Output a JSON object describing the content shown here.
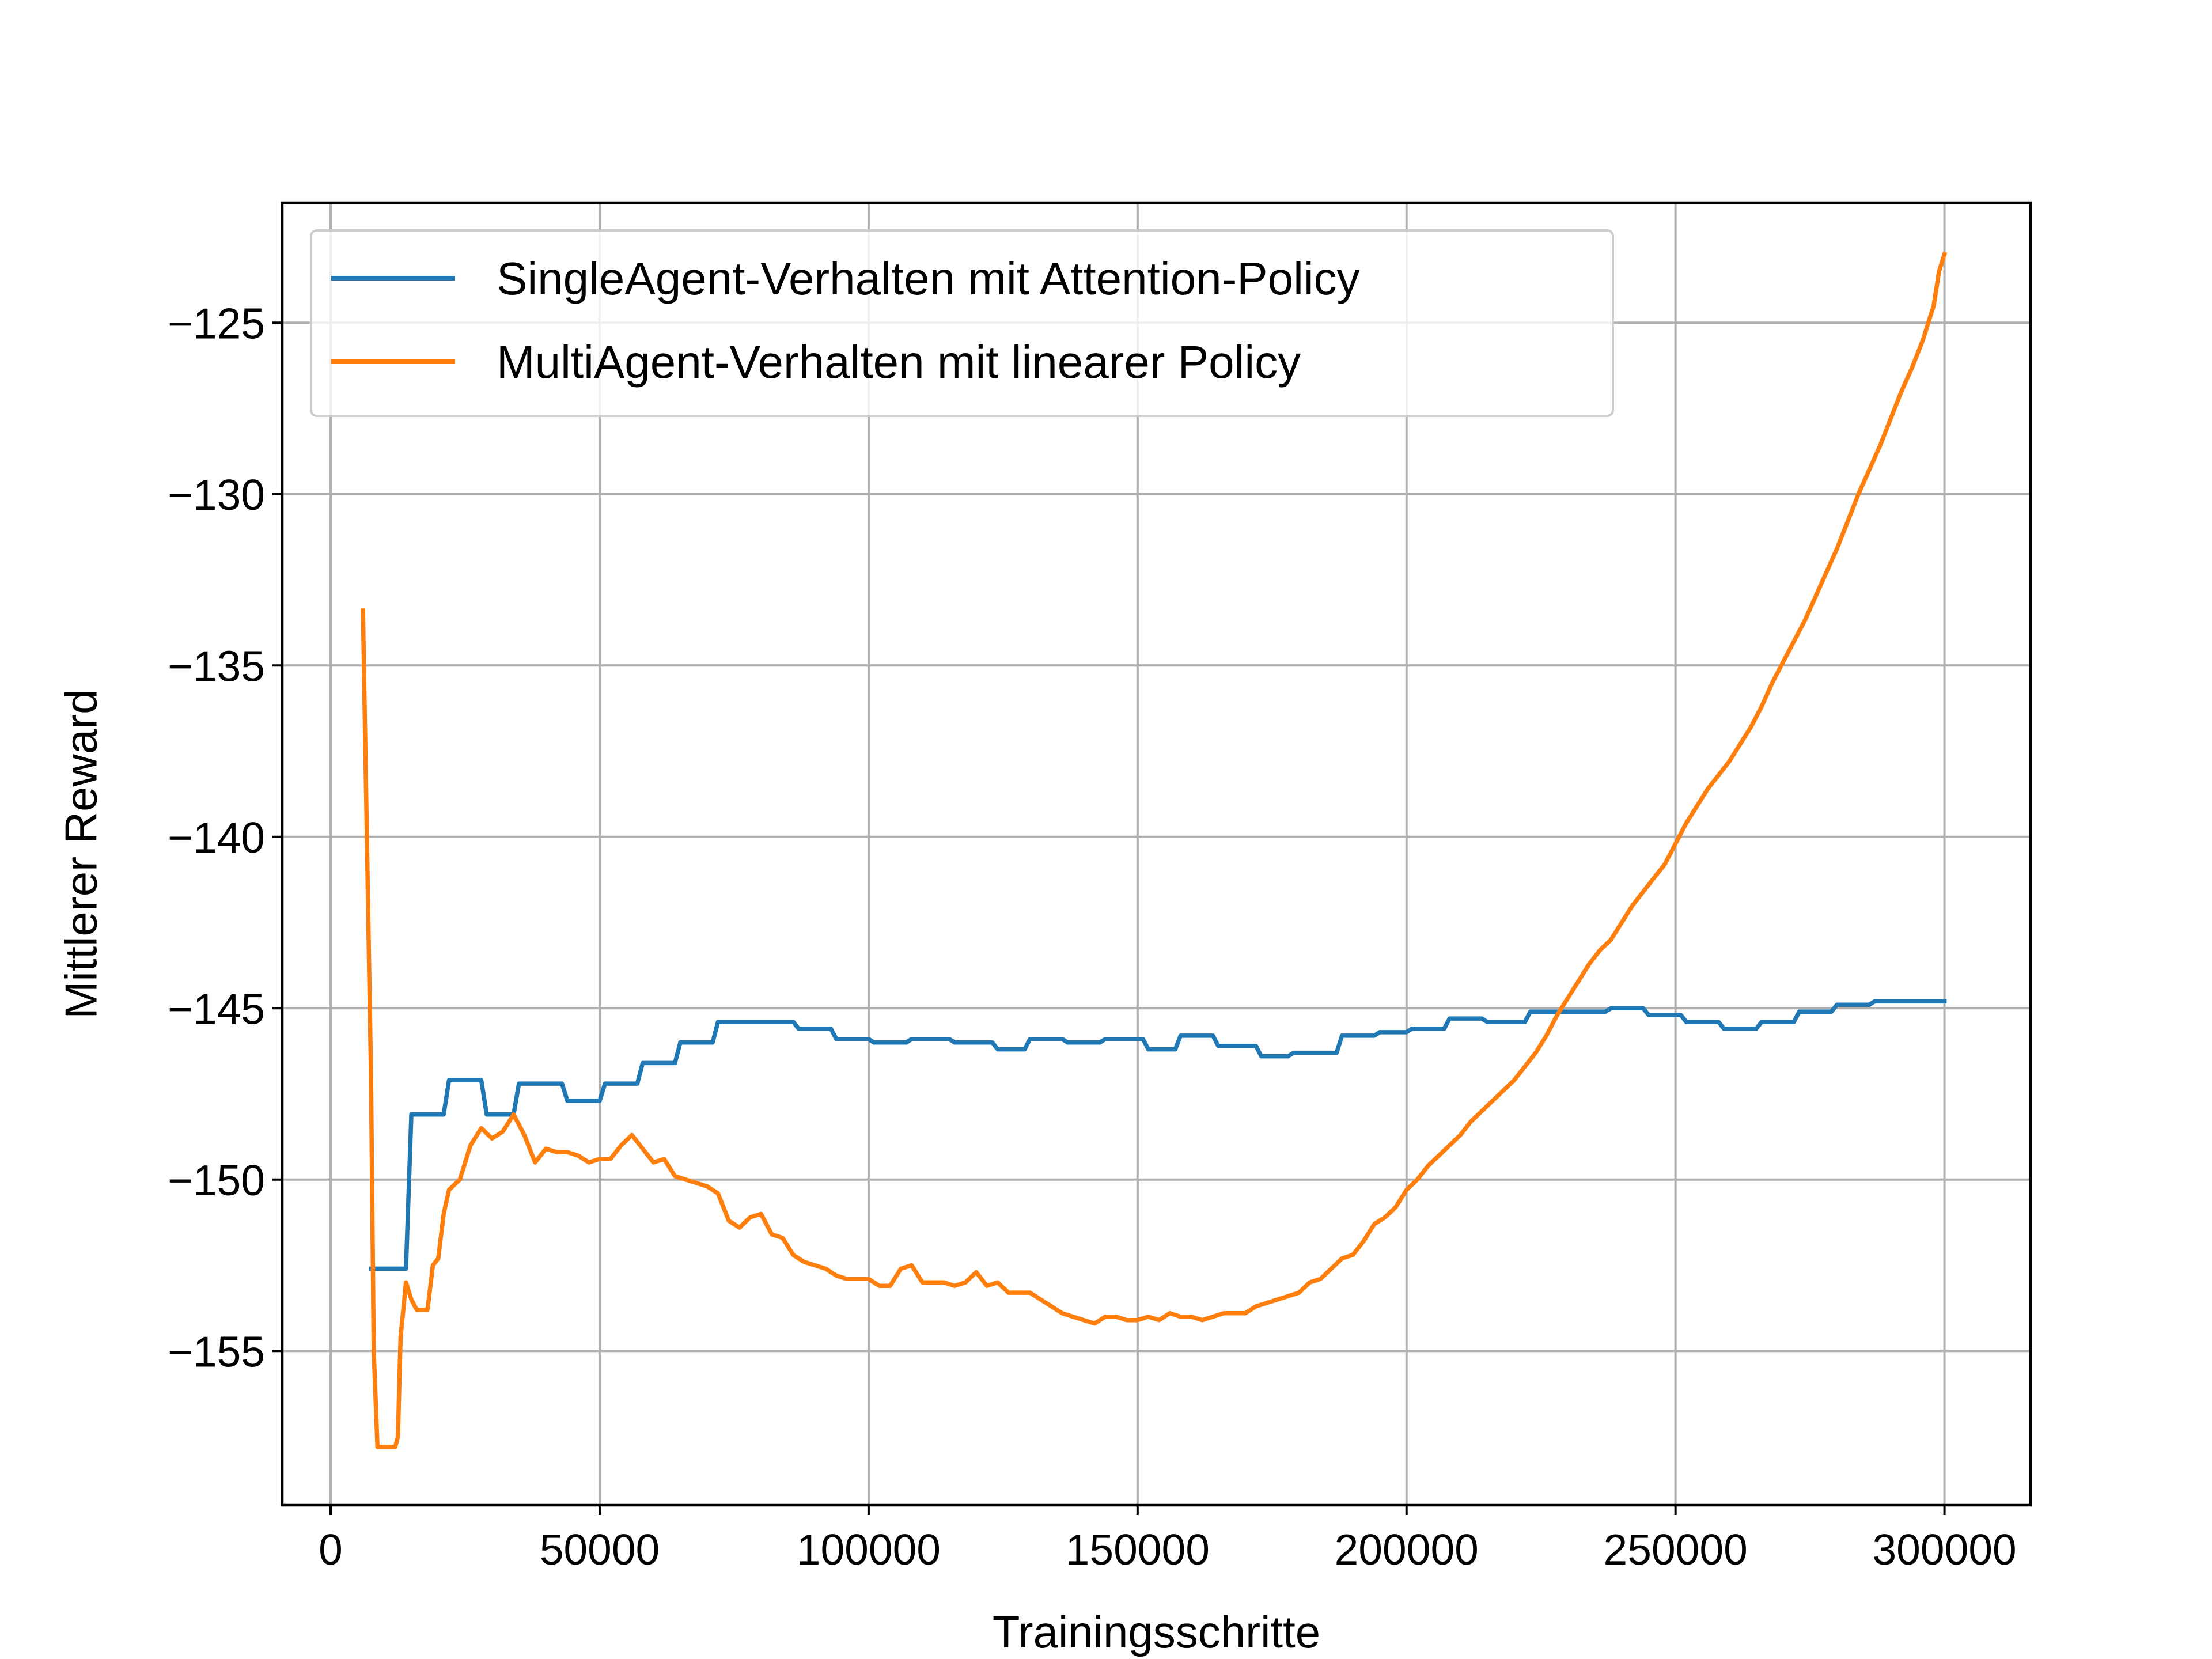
{
  "chart_data": {
    "type": "line",
    "title": "",
    "xlabel": "Trainingsschritte",
    "ylabel": "Mittlerer Reward",
    "xlim": [
      -9000,
      316000
    ],
    "ylim": [
      -159.5,
      -121.5
    ],
    "xticks": [
      0,
      50000,
      100000,
      150000,
      200000,
      250000,
      300000
    ],
    "xtick_labels": [
      "0",
      "50000",
      "100000",
      "150000",
      "200000",
      "250000",
      "300000"
    ],
    "yticks": [
      -155,
      -150,
      -145,
      -140,
      -135,
      -130,
      -125
    ],
    "ytick_labels": [
      "−155",
      "−150",
      "−145",
      "−140",
      "−135",
      "−130",
      "−125"
    ],
    "grid": true,
    "legend_position": "top-left",
    "series": [
      {
        "name": "SingleAgent-Verhalten mit Attention-Policy",
        "color": "#1f77b4",
        "points": [
          [
            7500,
            -152.6
          ],
          [
            14000,
            -152.6
          ],
          [
            15000,
            -148.1
          ],
          [
            21000,
            -148.1
          ],
          [
            22000,
            -147.1
          ],
          [
            28000,
            -147.1
          ],
          [
            29000,
            -148.1
          ],
          [
            34000,
            -148.1
          ],
          [
            35000,
            -147.2
          ],
          [
            43000,
            -147.2
          ],
          [
            44000,
            -147.7
          ],
          [
            50000,
            -147.7
          ],
          [
            51000,
            -147.2
          ],
          [
            57000,
            -147.2
          ],
          [
            58000,
            -146.6
          ],
          [
            64000,
            -146.6
          ],
          [
            65000,
            -146.0
          ],
          [
            71000,
            -146.0
          ],
          [
            72000,
            -145.4
          ],
          [
            86000,
            -145.4
          ],
          [
            87000,
            -145.6
          ],
          [
            93000,
            -145.6
          ],
          [
            94000,
            -145.9
          ],
          [
            100000,
            -145.9
          ],
          [
            101000,
            -146.0
          ],
          [
            107000,
            -146.0
          ],
          [
            108000,
            -145.9
          ],
          [
            115000,
            -145.9
          ],
          [
            116000,
            -146.0
          ],
          [
            123000,
            -146.0
          ],
          [
            124000,
            -146.2
          ],
          [
            129000,
            -146.2
          ],
          [
            130000,
            -145.9
          ],
          [
            136000,
            -145.9
          ],
          [
            137000,
            -146.0
          ],
          [
            143000,
            -146.0
          ],
          [
            144000,
            -145.9
          ],
          [
            151000,
            -145.9
          ],
          [
            152000,
            -146.2
          ],
          [
            157000,
            -146.2
          ],
          [
            158000,
            -145.8
          ],
          [
            164000,
            -145.8
          ],
          [
            165000,
            -146.1
          ],
          [
            172000,
            -146.1
          ],
          [
            173000,
            -146.4
          ],
          [
            178000,
            -146.4
          ],
          [
            179000,
            -146.3
          ],
          [
            187000,
            -146.3
          ],
          [
            188000,
            -145.8
          ],
          [
            194000,
            -145.8
          ],
          [
            195000,
            -145.7
          ],
          [
            200000,
            -145.7
          ],
          [
            201000,
            -145.6
          ],
          [
            207000,
            -145.6
          ],
          [
            208000,
            -145.3
          ],
          [
            214000,
            -145.3
          ],
          [
            215000,
            -145.4
          ],
          [
            222000,
            -145.4
          ],
          [
            223000,
            -145.1
          ],
          [
            229000,
            -145.1
          ],
          [
            230000,
            -145.1
          ],
          [
            237000,
            -145.1
          ],
          [
            238000,
            -145.0
          ],
          [
            244000,
            -145.0
          ],
          [
            245000,
            -145.2
          ],
          [
            251000,
            -145.2
          ],
          [
            252000,
            -145.4
          ],
          [
            258000,
            -145.4
          ],
          [
            259000,
            -145.6
          ],
          [
            265000,
            -145.6
          ],
          [
            266000,
            -145.4
          ],
          [
            272000,
            -145.4
          ],
          [
            273000,
            -145.1
          ],
          [
            279000,
            -145.1
          ],
          [
            280000,
            -144.9
          ],
          [
            286000,
            -144.9
          ],
          [
            287000,
            -144.8
          ],
          [
            300000,
            -144.8
          ]
        ]
      },
      {
        "name": "MultiAgent-Verhalten mit linearer Policy",
        "color": "#ff7f0e",
        "points": [
          [
            6000,
            -133.4
          ],
          [
            7500,
            -147.0
          ],
          [
            8000,
            -155.0
          ],
          [
            8700,
            -157.8
          ],
          [
            12000,
            -157.8
          ],
          [
            12500,
            -157.5
          ],
          [
            13000,
            -154.6
          ],
          [
            14000,
            -153.0
          ],
          [
            15000,
            -153.5
          ],
          [
            16000,
            -153.8
          ],
          [
            18000,
            -153.8
          ],
          [
            19000,
            -152.5
          ],
          [
            20000,
            -152.3
          ],
          [
            21000,
            -151.0
          ],
          [
            22000,
            -150.3
          ],
          [
            24000,
            -150.0
          ],
          [
            26000,
            -149.0
          ],
          [
            28000,
            -148.5
          ],
          [
            30000,
            -148.8
          ],
          [
            32000,
            -148.6
          ],
          [
            34000,
            -148.1
          ],
          [
            36000,
            -148.7
          ],
          [
            38000,
            -149.5
          ],
          [
            40000,
            -149.1
          ],
          [
            42000,
            -149.2
          ],
          [
            44000,
            -149.2
          ],
          [
            46000,
            -149.3
          ],
          [
            48000,
            -149.5
          ],
          [
            50000,
            -149.4
          ],
          [
            52000,
            -149.4
          ],
          [
            54000,
            -149.0
          ],
          [
            56000,
            -148.7
          ],
          [
            58000,
            -149.1
          ],
          [
            60000,
            -149.5
          ],
          [
            62000,
            -149.4
          ],
          [
            64000,
            -149.9
          ],
          [
            66000,
            -150.0
          ],
          [
            68000,
            -150.1
          ],
          [
            70000,
            -150.2
          ],
          [
            72000,
            -150.4
          ],
          [
            74000,
            -151.2
          ],
          [
            76000,
            -151.4
          ],
          [
            78000,
            -151.1
          ],
          [
            80000,
            -151.0
          ],
          [
            82000,
            -151.6
          ],
          [
            84000,
            -151.7
          ],
          [
            86000,
            -152.2
          ],
          [
            88000,
            -152.4
          ],
          [
            90000,
            -152.5
          ],
          [
            92000,
            -152.6
          ],
          [
            94000,
            -152.8
          ],
          [
            96000,
            -152.9
          ],
          [
            98000,
            -152.9
          ],
          [
            100000,
            -152.9
          ],
          [
            102000,
            -153.1
          ],
          [
            104000,
            -153.1
          ],
          [
            106000,
            -152.6
          ],
          [
            108000,
            -152.5
          ],
          [
            110000,
            -153.0
          ],
          [
            112000,
            -153.0
          ],
          [
            114000,
            -153.0
          ],
          [
            116000,
            -153.1
          ],
          [
            118000,
            -153.0
          ],
          [
            120000,
            -152.7
          ],
          [
            122000,
            -153.1
          ],
          [
            124000,
            -153.0
          ],
          [
            126000,
            -153.3
          ],
          [
            128000,
            -153.3
          ],
          [
            130000,
            -153.3
          ],
          [
            132000,
            -153.5
          ],
          [
            134000,
            -153.7
          ],
          [
            136000,
            -153.9
          ],
          [
            138000,
            -154.0
          ],
          [
            140000,
            -154.1
          ],
          [
            142000,
            -154.2
          ],
          [
            144000,
            -154.0
          ],
          [
            146000,
            -154.0
          ],
          [
            148000,
            -154.1
          ],
          [
            150000,
            -154.1
          ],
          [
            152000,
            -154.0
          ],
          [
            154000,
            -154.1
          ],
          [
            156000,
            -153.9
          ],
          [
            158000,
            -154.0
          ],
          [
            160000,
            -154.0
          ],
          [
            162000,
            -154.1
          ],
          [
            164000,
            -154.0
          ],
          [
            166000,
            -153.9
          ],
          [
            168000,
            -153.9
          ],
          [
            170000,
            -153.9
          ],
          [
            172000,
            -153.7
          ],
          [
            174000,
            -153.6
          ],
          [
            176000,
            -153.5
          ],
          [
            178000,
            -153.4
          ],
          [
            180000,
            -153.3
          ],
          [
            182000,
            -153.0
          ],
          [
            184000,
            -152.9
          ],
          [
            186000,
            -152.6
          ],
          [
            188000,
            -152.3
          ],
          [
            190000,
            -152.2
          ],
          [
            192000,
            -151.8
          ],
          [
            194000,
            -151.3
          ],
          [
            196000,
            -151.1
          ],
          [
            198000,
            -150.8
          ],
          [
            200000,
            -150.3
          ],
          [
            202000,
            -150.0
          ],
          [
            204000,
            -149.6
          ],
          [
            206000,
            -149.3
          ],
          [
            208000,
            -149.0
          ],
          [
            210000,
            -148.7
          ],
          [
            212000,
            -148.3
          ],
          [
            214000,
            -148.0
          ],
          [
            216000,
            -147.7
          ],
          [
            218000,
            -147.4
          ],
          [
            220000,
            -147.1
          ],
          [
            222000,
            -146.7
          ],
          [
            224000,
            -146.3
          ],
          [
            226000,
            -145.8
          ],
          [
            228000,
            -145.2
          ],
          [
            230000,
            -144.7
          ],
          [
            232000,
            -144.2
          ],
          [
            234000,
            -143.7
          ],
          [
            236000,
            -143.3
          ],
          [
            238000,
            -143.0
          ],
          [
            240000,
            -142.5
          ],
          [
            242000,
            -142.0
          ],
          [
            244000,
            -141.6
          ],
          [
            246000,
            -141.2
          ],
          [
            248000,
            -140.8
          ],
          [
            250000,
            -140.2
          ],
          [
            252000,
            -139.6
          ],
          [
            254000,
            -139.1
          ],
          [
            256000,
            -138.6
          ],
          [
            258000,
            -138.2
          ],
          [
            260000,
            -137.8
          ],
          [
            262000,
            -137.3
          ],
          [
            264000,
            -136.8
          ],
          [
            266000,
            -136.2
          ],
          [
            268000,
            -135.5
          ],
          [
            270000,
            -134.9
          ],
          [
            272000,
            -134.3
          ],
          [
            274000,
            -133.7
          ],
          [
            276000,
            -133.0
          ],
          [
            278000,
            -132.3
          ],
          [
            280000,
            -131.6
          ],
          [
            282000,
            -130.8
          ],
          [
            284000,
            -130.0
          ],
          [
            286000,
            -129.3
          ],
          [
            288000,
            -128.6
          ],
          [
            290000,
            -127.8
          ],
          [
            292000,
            -127.0
          ],
          [
            294000,
            -126.3
          ],
          [
            296000,
            -125.5
          ],
          [
            298000,
            -124.5
          ],
          [
            299000,
            -123.5
          ],
          [
            300000,
            -123.0
          ]
        ]
      }
    ]
  }
}
